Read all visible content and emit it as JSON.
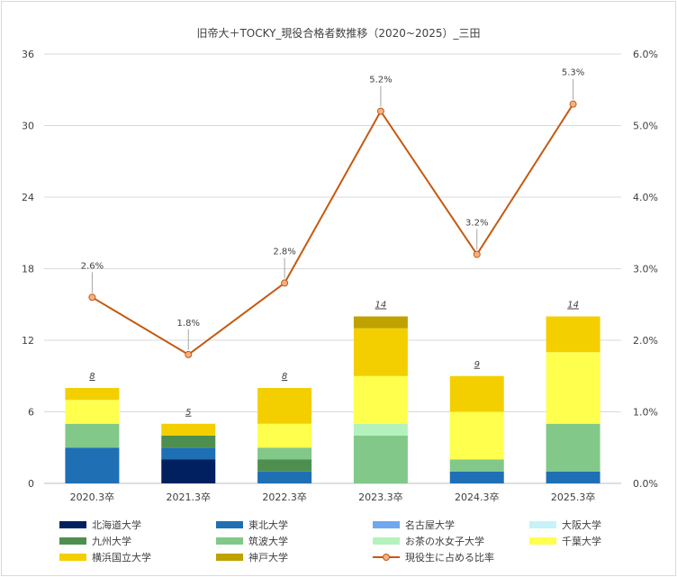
{
  "title": "旧帝大＋TOCKY_現役合格者数推移（2020~2025）_三田",
  "chart_data": {
    "type": "bar",
    "stacked": true,
    "title": "旧帝大＋TOCKY_現役合格者数推移（2020~2025）_三田",
    "categories": [
      "2020.3卒",
      "2021.3卒",
      "2022.3卒",
      "2023.3卒",
      "2024.3卒",
      "2025.3卒"
    ],
    "y_left": {
      "ylim": [
        0,
        36
      ],
      "ticks": [
        "0",
        "6",
        "12",
        "18",
        "24",
        "30",
        "36"
      ]
    },
    "y_right": {
      "ylim": [
        0,
        6.0
      ],
      "ticks": [
        "0.0%",
        "1.0%",
        "2.0%",
        "3.0%",
        "4.0%",
        "5.0%",
        "6.0%"
      ]
    },
    "series": [
      {
        "name": "北海道大学",
        "color": "#002060",
        "values": [
          0,
          2,
          0,
          0,
          0,
          0
        ]
      },
      {
        "name": "東北大学",
        "color": "#1f6fb5",
        "values": [
          3,
          1,
          1,
          0,
          1,
          1
        ]
      },
      {
        "name": "名古屋大学",
        "color": "#6fa8f0",
        "values": [
          0,
          0,
          0,
          0,
          0,
          0
        ]
      },
      {
        "name": "大阪大学",
        "color": "#c6f3f7",
        "values": [
          0,
          0,
          0,
          0,
          0,
          0
        ]
      },
      {
        "name": "九州大学",
        "color": "#4e8f50",
        "values": [
          0,
          1,
          1,
          0,
          0,
          0
        ]
      },
      {
        "name": "筑波大学",
        "color": "#82c889",
        "values": [
          2,
          0,
          1,
          4,
          1,
          4
        ]
      },
      {
        "name": "お茶の水女子大学",
        "color": "#b4f2bd",
        "values": [
          0,
          0,
          0,
          1,
          0,
          0
        ]
      },
      {
        "name": "千葉大学",
        "color": "#ffff4d",
        "values": [
          2,
          0,
          2,
          4,
          4,
          6
        ]
      },
      {
        "name": "横浜国立大学",
        "color": "#f3cf00",
        "values": [
          1,
          1,
          3,
          4,
          3,
          3
        ]
      },
      {
        "name": "神戸大学",
        "color": "#bfa200",
        "values": [
          0,
          0,
          0,
          1,
          0,
          0
        ]
      }
    ],
    "totals": [
      "8",
      "5",
      "8",
      "14",
      "9",
      "14"
    ],
    "line": {
      "name": "現役生に占める比率",
      "color": "#c55a11",
      "values": [
        2.6,
        1.8,
        2.8,
        5.2,
        3.2,
        5.3
      ],
      "labels": [
        "2.6%",
        "1.8%",
        "2.8%",
        "5.2%",
        "3.2%",
        "5.3%"
      ]
    },
    "legend_position": "bottom",
    "grid": true
  }
}
